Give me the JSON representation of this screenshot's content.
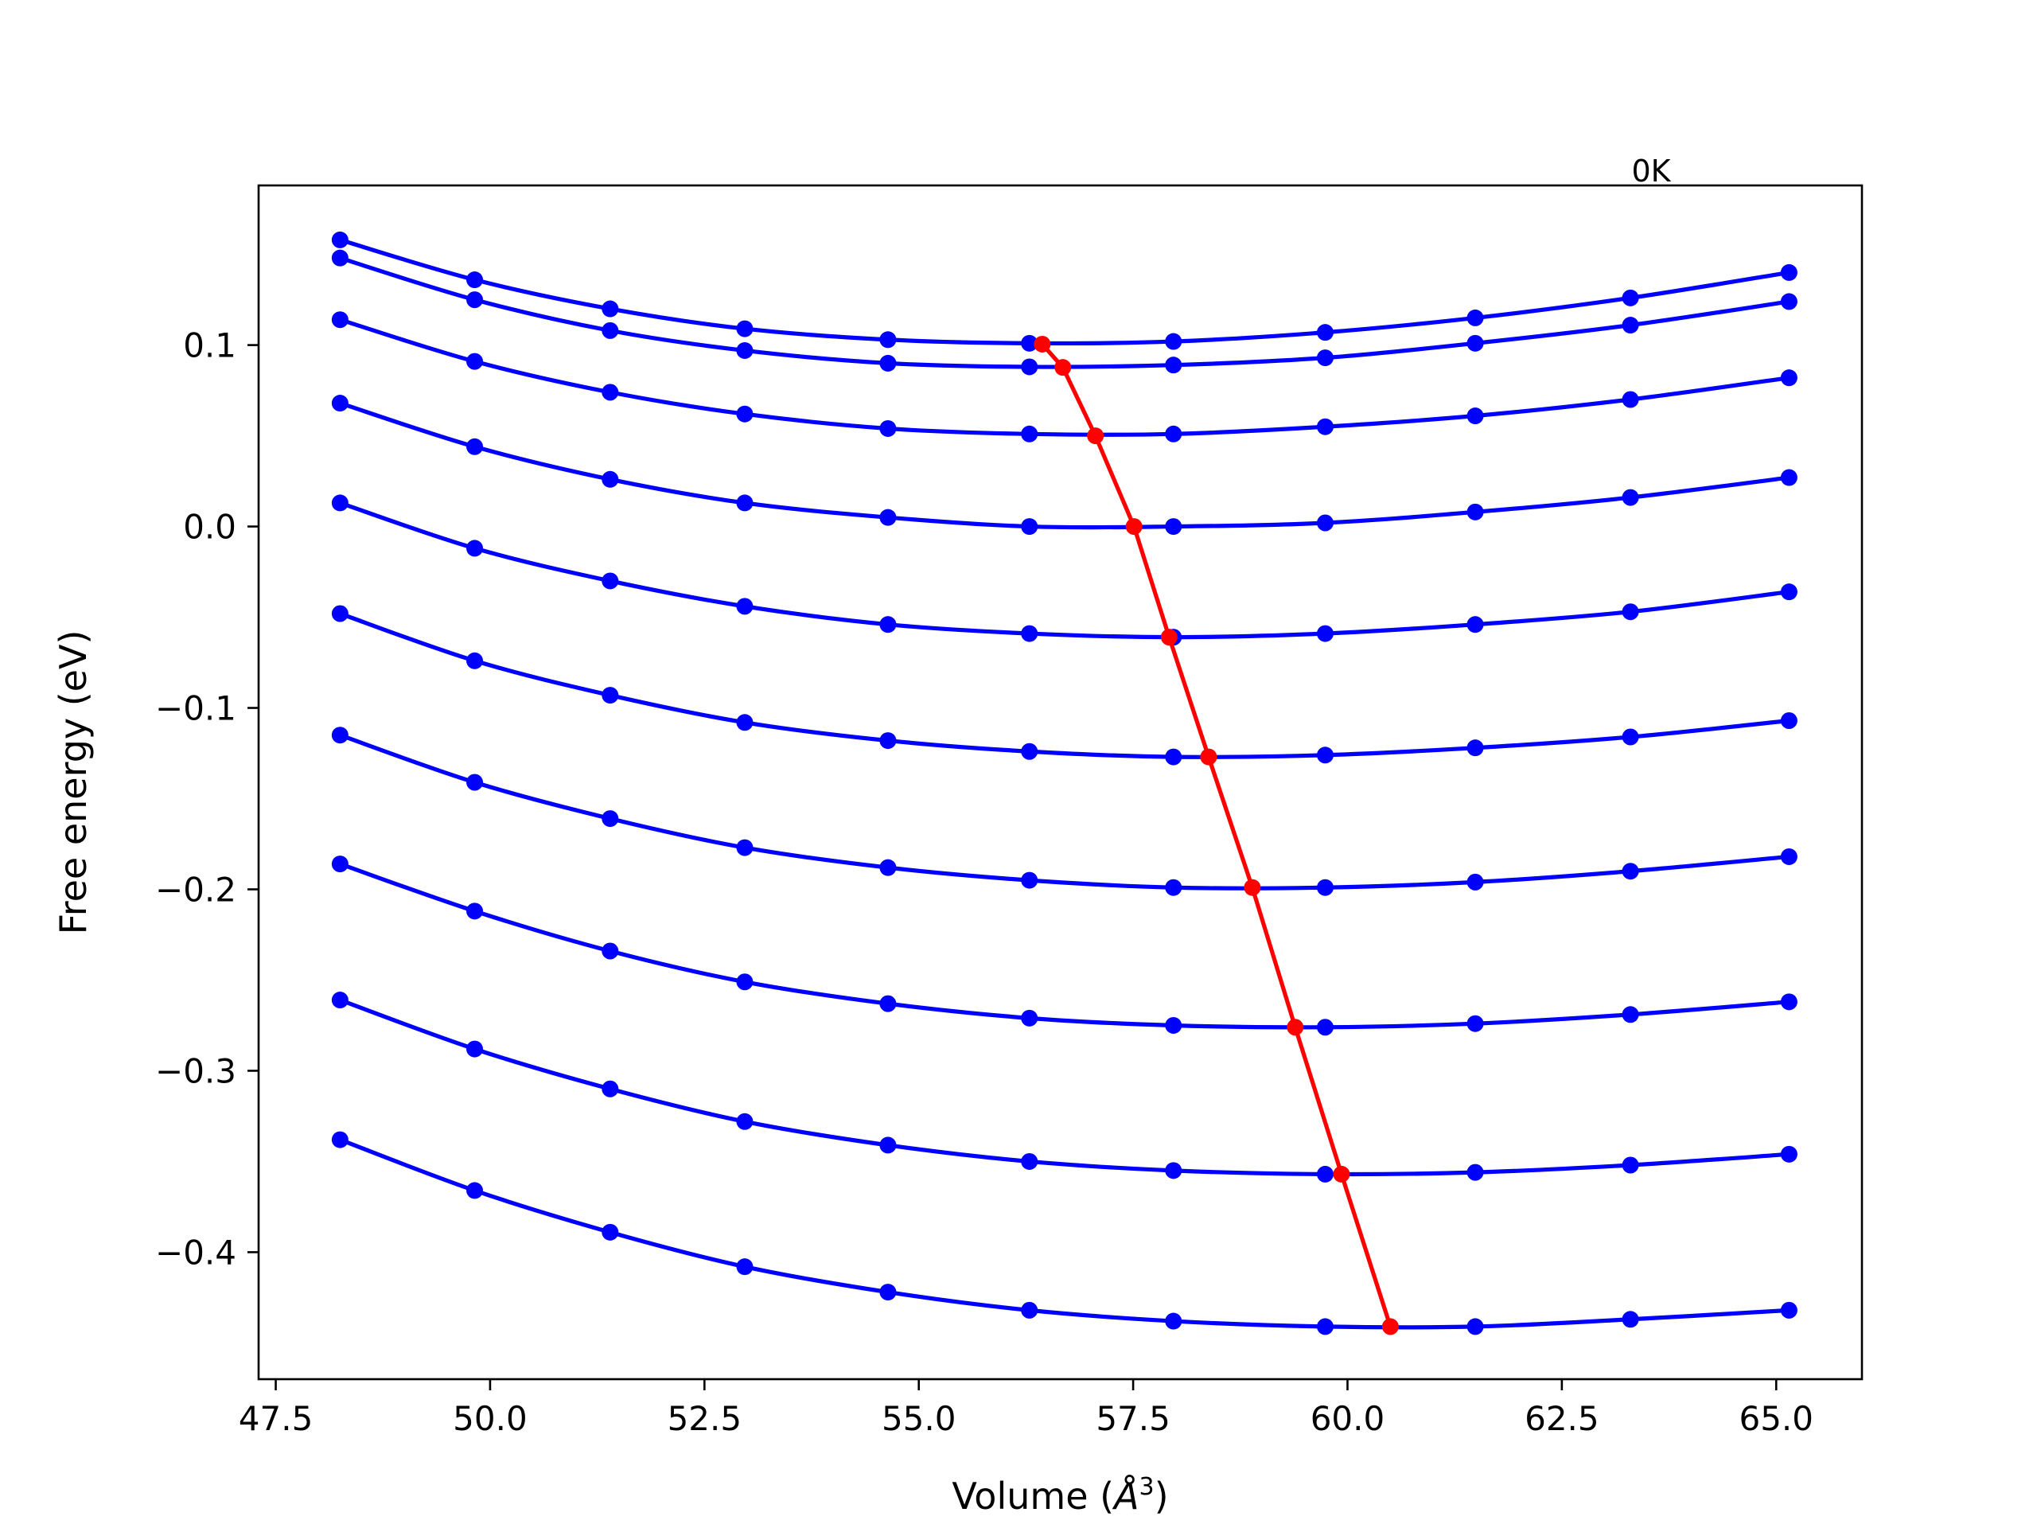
{
  "chart_data": {
    "type": "line",
    "title": "",
    "xlabel": "Volume (Å³)",
    "xlabel_main": "Volume (",
    "xlabel_unit": "Å",
    "xlabel_exp": "3",
    "xlabel_close": ")",
    "ylabel": "Free energy (eV)",
    "xlim": [
      47.3,
      66.0
    ],
    "ylim": [
      -0.47,
      0.188
    ],
    "xticks": [
      47.5,
      50.0,
      52.5,
      55.0,
      57.5,
      60.0,
      62.5,
      65.0
    ],
    "xtick_labels": [
      "47.5",
      "50.0",
      "52.5",
      "55.0",
      "57.5",
      "60.0",
      "62.5",
      "65.0"
    ],
    "yticks": [
      0.1,
      0.0,
      -0.1,
      -0.2,
      -0.3,
      -0.4
    ],
    "ytick_labels": [
      "0.1",
      "0.0",
      "−0.1",
      "−0.2",
      "−0.3",
      "−0.4"
    ],
    "annotation": "0K",
    "grid": false,
    "legend": "none",
    "colors": {
      "isotherm": "#0000ff",
      "minimum": "#ff0000"
    },
    "x": [
      48.25,
      49.82,
      51.4,
      52.97,
      54.64,
      56.29,
      57.97,
      59.74,
      61.49,
      63.3,
      65.15
    ],
    "series": [
      {
        "values": [
          0.158,
          0.136,
          0.12,
          0.109,
          0.103,
          0.101,
          0.102,
          0.107,
          0.115,
          0.126,
          0.14
        ]
      },
      {
        "values": [
          0.148,
          0.125,
          0.108,
          0.097,
          0.09,
          0.088,
          0.089,
          0.093,
          0.101,
          0.111,
          0.124
        ]
      },
      {
        "values": [
          0.114,
          0.091,
          0.074,
          0.062,
          0.054,
          0.051,
          0.051,
          0.055,
          0.061,
          0.07,
          0.082
        ]
      },
      {
        "values": [
          0.068,
          0.044,
          0.026,
          0.013,
          0.005,
          0.0,
          0.0,
          0.002,
          0.008,
          0.016,
          0.027
        ]
      },
      {
        "values": [
          0.013,
          -0.012,
          -0.03,
          -0.044,
          -0.054,
          -0.059,
          -0.061,
          -0.059,
          -0.054,
          -0.047,
          -0.036
        ]
      },
      {
        "values": [
          -0.048,
          -0.074,
          -0.093,
          -0.108,
          -0.118,
          -0.124,
          -0.127,
          -0.126,
          -0.122,
          -0.116,
          -0.107
        ]
      },
      {
        "values": [
          -0.115,
          -0.141,
          -0.161,
          -0.177,
          -0.188,
          -0.195,
          -0.199,
          -0.199,
          -0.196,
          -0.19,
          -0.182
        ]
      },
      {
        "values": [
          -0.186,
          -0.212,
          -0.234,
          -0.251,
          -0.263,
          -0.271,
          -0.275,
          -0.276,
          -0.274,
          -0.269,
          -0.262
        ]
      },
      {
        "values": [
          -0.261,
          -0.288,
          -0.31,
          -0.328,
          -0.341,
          -0.35,
          -0.355,
          -0.357,
          -0.356,
          -0.352,
          -0.346
        ]
      },
      {
        "values": [
          -0.338,
          -0.366,
          -0.389,
          -0.408,
          -0.422,
          -0.432,
          -0.438,
          -0.441,
          -0.441,
          -0.437,
          -0.432
        ]
      }
    ],
    "minimum_line": {
      "x": [
        56.44,
        56.68,
        57.06,
        57.51,
        57.92,
        58.38,
        58.89,
        59.39,
        59.93,
        60.5
      ],
      "y": [
        0.1005,
        0.0877,
        0.05,
        0.0,
        -0.061,
        -0.127,
        -0.199,
        -0.276,
        -0.357,
        -0.441
      ]
    }
  }
}
